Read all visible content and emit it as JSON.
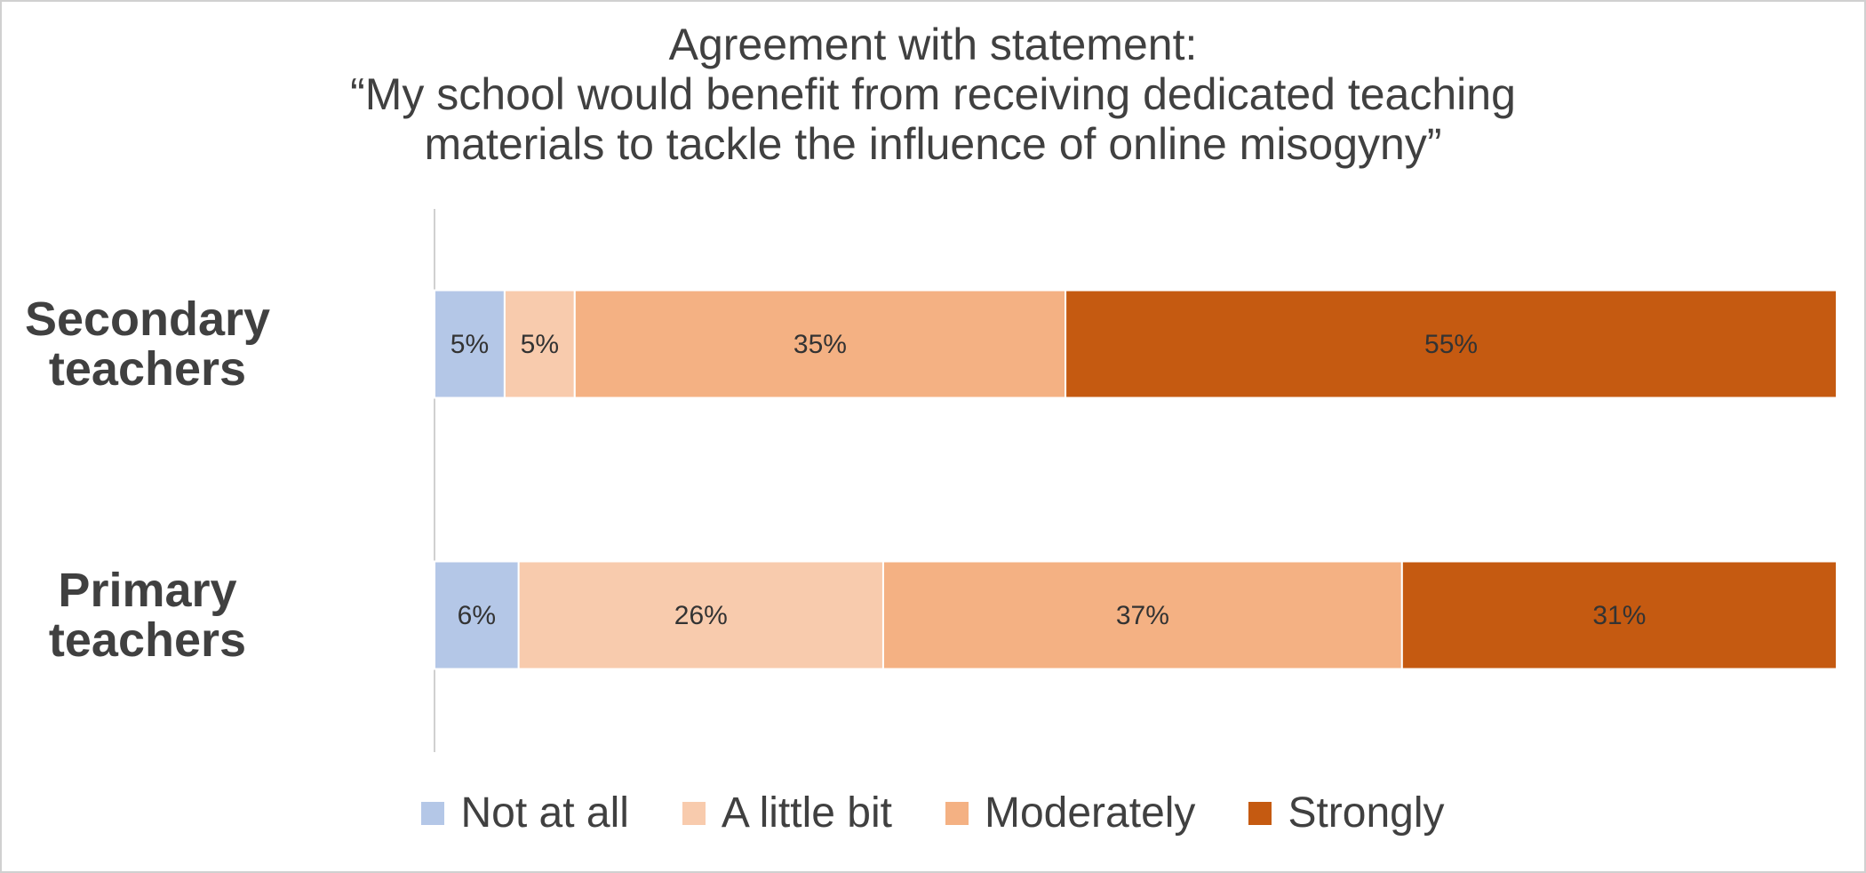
{
  "chart_data": {
    "type": "stacked-bar-horizontal",
    "title": "Agreement with statement:\n“My school would benefit from receiving dedicated teaching\nmaterials to tackle the influence of online misogyny”",
    "categories": [
      "Secondary teachers",
      "Primary teachers"
    ],
    "xlim": [
      0,
      100
    ],
    "series": [
      {
        "name": "Not at all",
        "color": "#b4c7e7",
        "values": [
          5,
          6
        ],
        "value_labels": [
          "5%",
          "6%"
        ]
      },
      {
        "name": "A little bit",
        "color": "#f8cbad",
        "values": [
          5,
          26
        ],
        "value_labels": [
          "5%",
          "26%"
        ]
      },
      {
        "name": "Moderately",
        "color": "#f4b183",
        "values": [
          35,
          37
        ],
        "value_labels": [
          "35%",
          "37%"
        ]
      },
      {
        "name": "Strongly",
        "color": "#c55a11",
        "values": [
          55,
          31
        ],
        "value_labels": [
          "55%",
          "31%"
        ]
      }
    ]
  }
}
